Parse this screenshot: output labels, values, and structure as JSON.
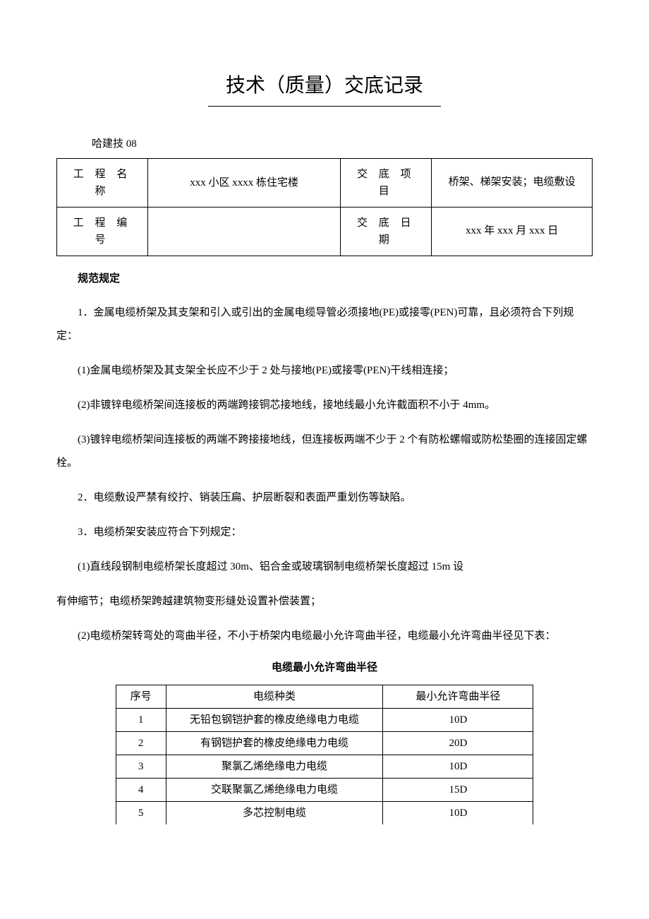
{
  "title": "技术（质量）交底记录",
  "doc_number": "哈建技 08",
  "header": {
    "project_name_label": "工 程 名 称",
    "project_name_value": "xxx 小区 xxxx 栋住宅楼",
    "item_label": "交 底 项 目",
    "item_value": "桥架、梯架安装；电缆敷设",
    "project_no_label": "工 程 编 号",
    "project_no_value": "",
    "date_label": "交 底 日 期",
    "date_value": "xxx 年 xxx 月 xxx 日"
  },
  "section_heading": "规范规定",
  "paragraphs": {
    "p1": "1．金属电缆桥架及其支架和引入或引出的金属电缆导管必须接地(PE)或接零(PEN)可靠，且必须符合下列规定：",
    "p2": "(1)金属电缆桥架及其支架全长应不少于 2 处与接地(PE)或接零(PEN)干线相连接；",
    "p3": "(2)非镀锌电缆桥架间连接板的两端跨接铜芯接地线，接地线最小允许截面积不小于 4mm。",
    "p4": "(3)镀锌电缆桥架间连接板的两端不跨接接地线，但连接板两端不少于 2 个有防松螺帽或防松垫圈的连接固定螺栓。",
    "p5": "2．电缆敷设严禁有绞拧、销装压扁、护层断裂和表面严重划伤等缺陷。",
    "p6": "3．电缆桥架安装应符合下列规定：",
    "p7": "(1)直线段钢制电缆桥架长度超过 30m、铝合金或玻璃钢制电缆桥架长度超过 15m 设",
    "p8": "有伸缩节；电缆桥架跨越建筑物变形缝处设置补偿装置；",
    "p9": "(2)电缆桥架转弯处的弯曲半径，不小于桥架内电缆最小允许弯曲半径，电缆最小允许弯曲半径见下表："
  },
  "table": {
    "title": "电缆最小允许弯曲半径",
    "columns": [
      "序号",
      "电缆种类",
      "最小允许弯曲半径"
    ],
    "rows": [
      [
        "1",
        "无铅包钢铠护套的橡皮绝缘电力电缆",
        "10D"
      ],
      [
        "2",
        "有钢铠护套的橡皮绝缘电力电缆",
        "20D"
      ],
      [
        "3",
        "聚氯乙烯绝缘电力电缆",
        "10D"
      ],
      [
        "4",
        "交联聚氯乙烯绝缘电力电缆",
        "15D"
      ],
      [
        "5",
        "多芯控制电缆",
        "10D"
      ]
    ]
  }
}
